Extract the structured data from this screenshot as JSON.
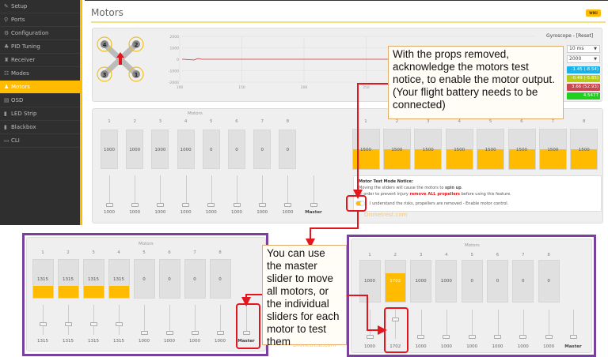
{
  "sidebar": {
    "items": [
      {
        "label": "Setup",
        "icon": "wrench-icon",
        "glyph": "✎"
      },
      {
        "label": "Ports",
        "icon": "plug-icon",
        "glyph": "⚲"
      },
      {
        "label": "Configuration",
        "icon": "gear-icon",
        "glyph": "⚙"
      },
      {
        "label": "PID Tuning",
        "icon": "sliders-icon",
        "glyph": "♣"
      },
      {
        "label": "Receiver",
        "icon": "receiver-icon",
        "glyph": "♜"
      },
      {
        "label": "Modes",
        "icon": "modes-icon",
        "glyph": "☷"
      },
      {
        "label": "Motors",
        "icon": "motor-icon",
        "glyph": "♟",
        "active": true
      },
      {
        "label": "OSD",
        "icon": "osd-icon",
        "glyph": "▤"
      },
      {
        "label": "LED Strip",
        "icon": "led-icon",
        "glyph": "▮"
      },
      {
        "label": "Blackbox",
        "icon": "blackbox-icon",
        "glyph": "▮"
      },
      {
        "label": "CLI",
        "icon": "terminal-icon",
        "glyph": "▭"
      }
    ]
  },
  "header": {
    "title": "Motors",
    "wiki": "WIKI"
  },
  "graph": {
    "y_ticks": [
      "2000",
      "1000",
      "0",
      "-1000",
      "-2000"
    ],
    "x_ticks": [
      "100",
      "150",
      "200",
      "250"
    ]
  },
  "gyro": {
    "title": "Gyroscope - [Reset]",
    "interval": "10 ms",
    "scale": "2000",
    "values": [
      {
        "text": "-1.45 (-8.54)",
        "color": "#1ab0e8"
      },
      {
        "text": "-0.49 (-5.85)",
        "color": "#b8cc14"
      },
      {
        "text": "3.66 (52.93)",
        "color": "#c9474f"
      },
      {
        "text": "4.5477",
        "color": "#1fd01f"
      }
    ]
  },
  "motors_label": "Motors",
  "master_label": "Master",
  "top_motors": {
    "numbers": [
      "1",
      "2",
      "3",
      "4",
      "5",
      "6",
      "7",
      "8"
    ],
    "bars": [
      "1000",
      "1000",
      "1000",
      "1000",
      "0",
      "0",
      "0",
      "0"
    ],
    "sliders": [
      "1000",
      "1000",
      "1000",
      "1000",
      "1000",
      "1000",
      "1000",
      "1000"
    ]
  },
  "top_right_bars": {
    "numbers": [
      "1",
      "2",
      "3",
      "4",
      "5",
      "6",
      "7",
      "8"
    ],
    "values": [
      "1500",
      "1500",
      "1500",
      "1500",
      "1500",
      "1500",
      "1500",
      "1500"
    ]
  },
  "notice": {
    "title": "Motor Test Mode Notice:",
    "line1_a": "Moving the sliders will cause the motors to ",
    "line1_b": "spin up",
    "line1_c": ".",
    "line2_a": "In order to prevent injury ",
    "line2_b": "remove ALL propellers",
    "line2_c": " before using this feature.",
    "toggle_label": "I understand the risks, propellers are removed - Enable motor control.",
    "toggle_on": true
  },
  "bottom_left": {
    "numbers": [
      "1",
      "2",
      "3",
      "4",
      "5",
      "6",
      "7",
      "8"
    ],
    "bars": [
      "1315",
      "1315",
      "1315",
      "1315",
      "0",
      "0",
      "0",
      "0"
    ],
    "sliders": [
      "1315",
      "1315",
      "1315",
      "1315",
      "1000",
      "1000",
      "1000",
      "1000"
    ]
  },
  "bottom_right": {
    "numbers": [
      "1",
      "2",
      "3",
      "4",
      "5",
      "6",
      "7",
      "8"
    ],
    "bars": [
      "1000",
      "1702",
      "1000",
      "1000",
      "0",
      "0",
      "0",
      "0"
    ],
    "sliders": [
      "1000",
      "1702",
      "1000",
      "1000",
      "1000",
      "1000",
      "1000",
      "1000"
    ]
  },
  "callout1": "With the props removed, acknowledge the motors test notice, to enable the motor output.  (Your flight battery needs to be connected)",
  "callout2": "You can use the master slider to move all motors, or the individual sliders for each motor to test them",
  "watermark": "Dronetrest.com",
  "colors": {
    "accent": "#ffbb00",
    "annotation_red": "#e4161d",
    "frame_purple": "#7b3f9e"
  }
}
